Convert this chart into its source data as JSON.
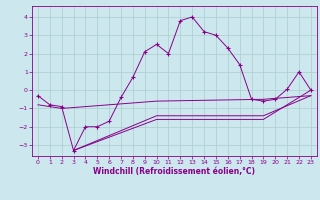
{
  "xlabel": "Windchill (Refroidissement éolien,°C)",
  "background_color": "#cce8ee",
  "grid_color": "#aacccc",
  "line_color": "#880088",
  "xlim": [
    -0.5,
    23.5
  ],
  "ylim": [
    -3.6,
    4.6
  ],
  "yticks": [
    -3,
    -2,
    -1,
    0,
    1,
    2,
    3,
    4
  ],
  "xticks": [
    0,
    1,
    2,
    3,
    4,
    5,
    6,
    7,
    8,
    9,
    10,
    11,
    12,
    13,
    14,
    15,
    16,
    17,
    18,
    19,
    20,
    21,
    22,
    23
  ],
  "series": [
    [
      0,
      -0.3
    ],
    [
      1,
      -0.8
    ],
    [
      2,
      -0.9
    ],
    [
      3,
      -3.3
    ],
    [
      4,
      -2.0
    ],
    [
      5,
      -2.0
    ],
    [
      6,
      -1.7
    ],
    [
      7,
      -0.4
    ],
    [
      8,
      0.7
    ],
    [
      9,
      2.1
    ],
    [
      10,
      2.5
    ],
    [
      11,
      2.0
    ],
    [
      12,
      3.8
    ],
    [
      13,
      4.0
    ],
    [
      14,
      3.2
    ],
    [
      15,
      3.0
    ],
    [
      16,
      2.3
    ],
    [
      17,
      1.4
    ],
    [
      18,
      -0.5
    ],
    [
      19,
      -0.6
    ],
    [
      20,
      -0.5
    ],
    [
      21,
      0.05
    ],
    [
      22,
      1.0
    ],
    [
      23,
      0.0
    ]
  ],
  "line2": [
    [
      0,
      -0.8
    ],
    [
      2,
      -1.0
    ],
    [
      10,
      -0.6
    ],
    [
      19,
      -0.5
    ],
    [
      23,
      -0.3
    ]
  ],
  "line3": [
    [
      3,
      -3.3
    ],
    [
      10,
      -1.4
    ],
    [
      19,
      -1.4
    ],
    [
      23,
      -0.3
    ]
  ],
  "line4": [
    [
      3,
      -3.3
    ],
    [
      10,
      -1.6
    ],
    [
      19,
      -1.6
    ],
    [
      23,
      0.0
    ]
  ]
}
